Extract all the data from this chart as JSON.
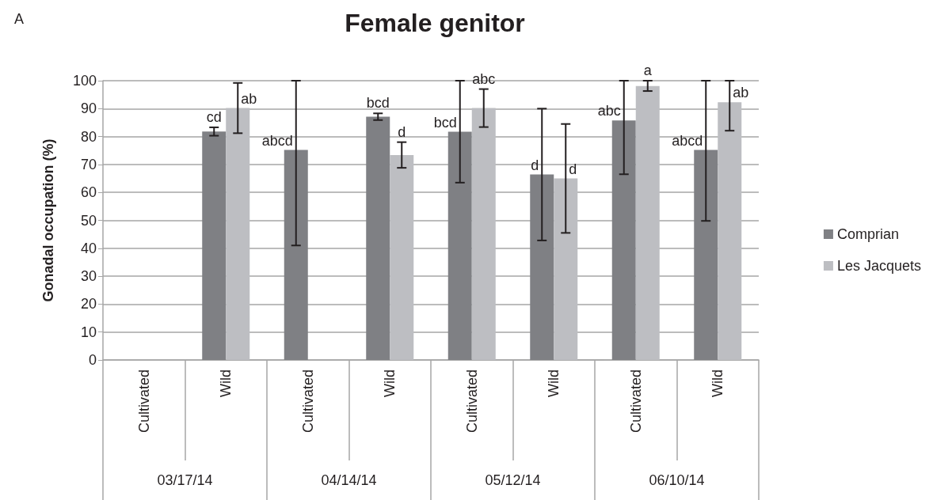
{
  "chart_data": {
    "type": "bar",
    "title": "Female genitor",
    "ylabel": "Gonadal occupation (%)",
    "categories": [
      "Cultivated",
      "Wild",
      "Cultivated",
      "Wild",
      "Cultivated",
      "Wild",
      "Cultivated",
      "Wild"
    ],
    "series": [
      {
        "name": "Comprian",
        "color": "#7f8084",
        "values": [
          null,
          81.8,
          75.2,
          87.1,
          81.7,
          66.4,
          85.8,
          75.2
        ],
        "errors": [
          null,
          1.5,
          [
            41,
            100
          ],
          1.2,
          [
            63.5,
            100
          ],
          23.6,
          [
            66.5,
            100
          ],
          [
            49.8,
            100
          ]
        ],
        "value_labels": [
          null,
          "cd",
          "abcd",
          "bcd",
          "bcd",
          "d",
          "abc",
          "abcd"
        ]
      },
      {
        "name": "Les Jacquets",
        "color": "#bdbec2",
        "values": [
          null,
          90.2,
          null,
          73.4,
          90.2,
          65.0,
          98.1,
          92.3
        ],
        "errors": [
          null,
          9,
          null,
          4.6,
          6.8,
          19.5,
          [
            96.3,
            100
          ],
          [
            82.1,
            100
          ]
        ],
        "value_labels": [
          null,
          "ab",
          null,
          "d",
          "abc",
          "d",
          "a",
          "ab"
        ]
      }
    ],
    "ylim": [
      0,
      100
    ],
    "yticks": [
      0,
      10,
      20,
      30,
      40,
      50,
      60,
      70,
      80,
      90,
      100
    ],
    "grid": "y",
    "legend": "right",
    "annotations": [
      "A",
      "03/17/14",
      "04/14/14",
      "05/12/14",
      "06/10/14"
    ]
  }
}
